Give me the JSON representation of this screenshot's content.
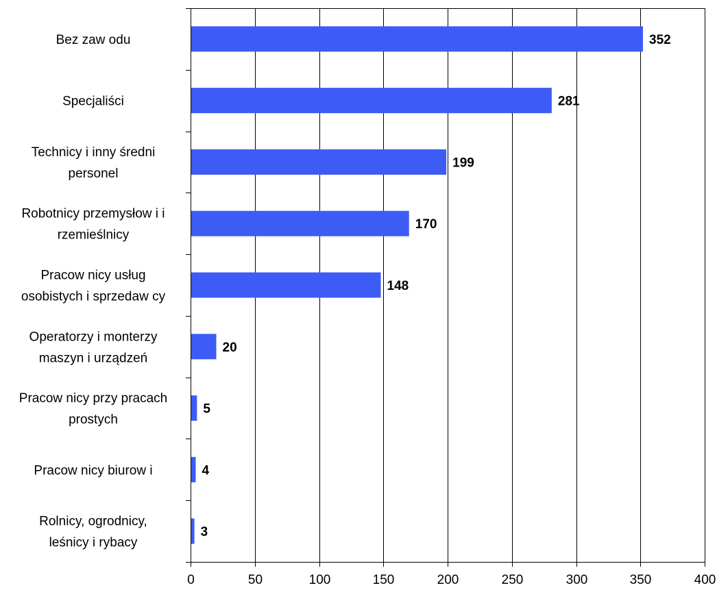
{
  "chart_data": {
    "type": "bar",
    "orientation": "horizontal",
    "categories": [
      [
        "Bez zaw odu"
      ],
      [
        "Specjaliści"
      ],
      [
        "Technicy i inny średni",
        "personel"
      ],
      [
        "Robotnicy przemysłow i i",
        "rzemieślnicy"
      ],
      [
        "Pracow nicy usług",
        "osobistych i sprzedaw cy"
      ],
      [
        "Operatorzy i monterzy",
        "maszyn i urządzeń"
      ],
      [
        "Pracow nicy przy pracach",
        "prostych"
      ],
      [
        "Pracow nicy biurow i"
      ],
      [
        "Rolnicy, ogrodnicy,",
        "leśnicy i rybacy"
      ]
    ],
    "values": [
      352,
      281,
      199,
      170,
      148,
      20,
      5,
      4,
      3
    ],
    "data_labels": [
      "352",
      "281",
      "199",
      "170",
      "148",
      "20",
      "5",
      "4",
      "3"
    ],
    "xlim": [
      0,
      400
    ],
    "xticks": [
      0,
      50,
      100,
      150,
      200,
      250,
      300,
      350,
      400
    ],
    "xtick_labels": [
      "0",
      "50",
      "100",
      "150",
      "200",
      "250",
      "300",
      "350",
      "400"
    ],
    "title": "",
    "xlabel": "",
    "ylabel": "",
    "grid": "vertical",
    "legend": "none",
    "bar_color": "#3d5cf5",
    "grid_color": "#000000"
  }
}
